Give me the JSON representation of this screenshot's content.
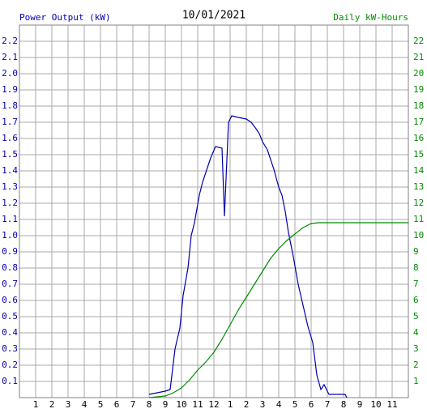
{
  "chart_data": {
    "type": "line",
    "title": "10/01/2021",
    "y_label": "Power Output (kW)",
    "y2_label": "Daily kW-Hours",
    "xlim": [
      0,
      24
    ],
    "xticks": [
      1,
      2,
      3,
      4,
      5,
      6,
      7,
      8,
      9,
      10,
      11,
      12,
      {
        "value": 13,
        "label": "1"
      },
      {
        "value": 14,
        "label": "2"
      },
      {
        "value": 15,
        "label": "3"
      },
      {
        "value": 16,
        "label": "4"
      },
      {
        "value": 17,
        "label": "5"
      },
      {
        "value": 18,
        "label": "6"
      },
      {
        "value": 19,
        "label": "7"
      },
      {
        "value": 20,
        "label": "8"
      },
      {
        "value": 21,
        "label": "9"
      },
      {
        "value": 22,
        "label": "10"
      },
      {
        "value": 23,
        "label": "11"
      }
    ],
    "ylim": [
      0,
      2.3
    ],
    "yticks": [
      0.1,
      0.2,
      0.3,
      0.4,
      0.5,
      0.6,
      0.7,
      0.8,
      0.9,
      {
        "value": 1,
        "label": "1.0"
      },
      1.1,
      1.2,
      1.3,
      1.4,
      1.5,
      1.6,
      1.7,
      1.8,
      1.9,
      {
        "value": 2,
        "label": "2.0"
      },
      2.1,
      2.2
    ],
    "y2lim": [
      0,
      23
    ],
    "y2ticks": [
      1,
      2,
      3,
      4,
      5,
      6,
      7,
      8,
      9,
      10,
      11,
      12,
      13,
      14,
      15,
      16,
      17,
      18,
      19,
      20,
      21,
      22
    ],
    "grid": true,
    "series": [
      {
        "name": "Power Output (kW)",
        "color": "#0000b0",
        "x": [
          8,
          8.5,
          9,
          9.3,
          9.6,
          9.9,
          10.1,
          10.4,
          10.6,
          10.8,
          11.1,
          11.3,
          11.6,
          11.8,
          12.1,
          12.5,
          12.65,
          12.9,
          13.1,
          13.5,
          14,
          14.3,
          14.6,
          14.8,
          15,
          15.3,
          15.5,
          15.7,
          16,
          16.2,
          16.4,
          16.6,
          16.9,
          17.2,
          17.5,
          17.8,
          18.1,
          18.35,
          18.6,
          18.8,
          19.1,
          20.1,
          20.2
        ],
        "values": [
          0.02,
          0.03,
          0.04,
          0.05,
          0.3,
          0.43,
          0.63,
          0.8,
          1.0,
          1.08,
          1.25,
          1.33,
          1.42,
          1.48,
          1.55,
          1.54,
          1.12,
          1.7,
          1.74,
          1.73,
          1.72,
          1.7,
          1.66,
          1.63,
          1.58,
          1.53,
          1.47,
          1.41,
          1.3,
          1.25,
          1.15,
          1.02,
          0.87,
          0.7,
          0.57,
          0.44,
          0.34,
          0.14,
          0.05,
          0.08,
          0.02,
          0.02,
          0
        ]
      },
      {
        "name": "Daily kW-Hours",
        "color": "#008c00",
        "axis": "y2",
        "x": [
          8,
          9,
          9.5,
          10,
          10.5,
          11,
          11.5,
          12,
          12.5,
          13,
          13.5,
          14,
          14.5,
          15,
          15.5,
          16,
          16.5,
          17,
          17.5,
          18,
          18.5,
          19,
          24
        ],
        "values": [
          0,
          0.1,
          0.3,
          0.6,
          1.1,
          1.7,
          2.2,
          2.8,
          3.6,
          4.5,
          5.4,
          6.2,
          7.0,
          7.8,
          8.6,
          9.2,
          9.7,
          10.1,
          10.5,
          10.75,
          10.8,
          10.8,
          10.8
        ]
      }
    ]
  }
}
